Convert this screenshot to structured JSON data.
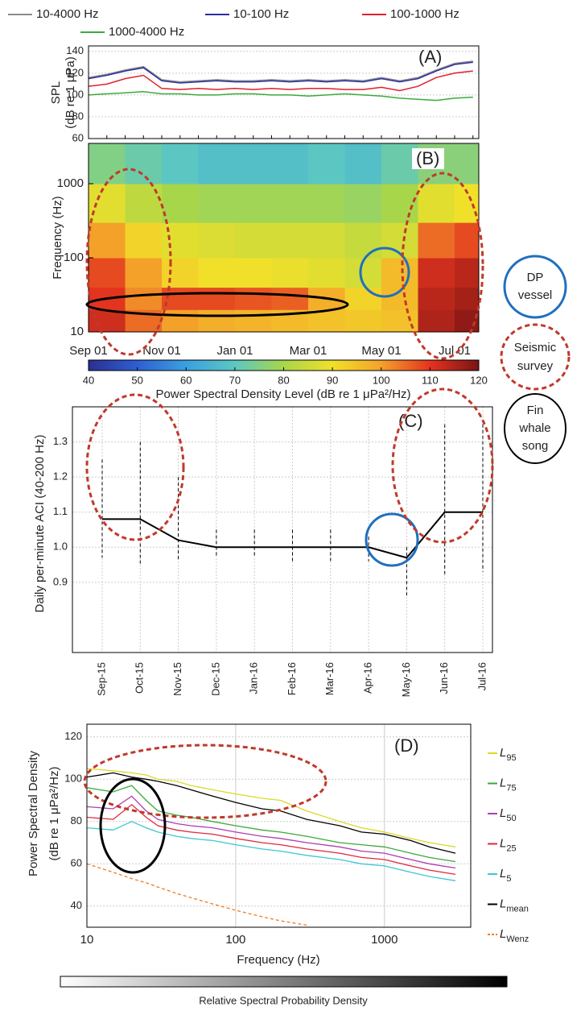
{
  "chart_data": [
    {
      "type": "line",
      "panel_label": "(A)",
      "y_label": [
        "SPL",
        "(dB re 1 μPa)"
      ],
      "categories": [
        "Sep 01",
        null,
        null,
        null,
        "Nov 01",
        null,
        null,
        null,
        "Jan 01",
        null,
        null,
        null,
        "Mar 01",
        null,
        null,
        null,
        "May 01",
        null,
        null,
        null,
        "Jul 01",
        null
      ],
      "series": [
        {
          "name": "10-4000 Hz",
          "color": "#8c8c8c",
          "values": [
            116,
            119,
            123,
            126,
            114,
            112,
            113,
            114,
            113,
            113,
            114,
            113,
            114,
            113,
            114,
            113,
            116,
            113,
            116,
            123,
            129,
            131
          ]
        },
        {
          "name": "10-100 Hz",
          "color": "#2b2f9a",
          "values": [
            115,
            118,
            122,
            125,
            113,
            111,
            112,
            113,
            112,
            112,
            113,
            112,
            113,
            112,
            113,
            112,
            115,
            112,
            115,
            122,
            128,
            130
          ]
        },
        {
          "name": "100-1000 Hz",
          "color": "#e0202a",
          "values": [
            108,
            110,
            115,
            118,
            106,
            105,
            106,
            105,
            106,
            105,
            106,
            105,
            106,
            106,
            105,
            105,
            107,
            104,
            108,
            116,
            120,
            122
          ]
        },
        {
          "name": "1000-4000 Hz",
          "color": "#3caa3c",
          "values": [
            100,
            101,
            102,
            103,
            101,
            101,
            100,
            100,
            101,
            101,
            100,
            100,
            99,
            100,
            101,
            100,
            99,
            97,
            96,
            95,
            97,
            98
          ]
        }
      ],
      "ylim": [
        60,
        145
      ],
      "yticks": [
        60,
        80,
        100,
        120,
        140
      ],
      "grid": true
    },
    {
      "type": "heatmap",
      "panel_label": "(B)",
      "y_label": "Frequency (Hz)",
      "log_y": true,
      "y_edges": [
        10,
        20,
        40,
        100,
        300,
        1000,
        3500
      ],
      "z": [
        [
          112,
          105,
          100,
          98,
          97,
          96,
          95,
          94,
          95,
          115,
          118
        ],
        [
          110,
          102,
          108,
          108,
          107,
          106,
          98,
          92,
          96,
          114,
          116
        ],
        [
          108,
          100,
          92,
          90,
          90,
          89,
          88,
          86,
          96,
          112,
          114
        ],
        [
          100,
          92,
          88,
          87,
          86,
          86,
          86,
          84,
          86,
          105,
          108
        ],
        [
          88,
          83,
          80,
          79,
          79,
          79,
          79,
          78,
          80,
          88,
          90
        ],
        [
          75,
          72,
          70,
          68,
          68,
          68,
          70,
          68,
          72,
          76,
          76
        ]
      ],
      "ylim": [
        10,
        3500
      ],
      "yticks": [
        10,
        100,
        1000
      ],
      "zlim": [
        40,
        120
      ],
      "zticks": [
        40,
        50,
        60,
        70,
        80,
        90,
        100,
        110,
        120
      ],
      "colorbar_label": "Power Spectral Density Level (dB re 1 μPa²/Hz)",
      "colormap": [
        "#2b2f91",
        "#2e5fd0",
        "#3aa0e0",
        "#5cc7c2",
        "#a8d64a",
        "#f1e02a",
        "#f4a12a",
        "#e3341f",
        "#7a1414"
      ]
    },
    {
      "type": "range",
      "panel_label": "(C)",
      "y_label": "Daily per-minute ACI (40-200 Hz)",
      "categories": [
        "Sep-15",
        "Oct-15",
        "Nov-15",
        "Dec-15",
        "Jan-16",
        "Feb-16",
        "Mar-16",
        "Apr-16",
        "May-16",
        "Jun-16",
        "Jul-16"
      ],
      "series": [
        {
          "name": "mean",
          "color": "#000000",
          "values": [
            1.08,
            1.08,
            1.02,
            1.0,
            1.0,
            1.0,
            1.0,
            1.0,
            0.97,
            1.1,
            1.1
          ]
        },
        {
          "name": "max",
          "color": "#000000",
          "values": [
            1.25,
            1.3,
            1.2,
            1.05,
            1.05,
            1.05,
            1.05,
            1.03,
            1.0,
            1.35,
            1.35
          ]
        },
        {
          "name": "min",
          "color": "#000000",
          "values": [
            0.97,
            0.95,
            0.96,
            0.97,
            0.97,
            0.96,
            0.96,
            0.96,
            0.86,
            0.92,
            0.93
          ]
        }
      ],
      "ylim": [
        0.7,
        1.4
      ],
      "yticks": [
        0.9,
        {
          "value": 1,
          "label": "1.0"
        },
        1.1,
        1.2,
        1.3
      ],
      "grid": true
    },
    {
      "type": "line",
      "panel_label": "(D)",
      "log_x": true,
      "x_label": "Frequency (Hz)",
      "y_label": [
        "Power Spectral Density",
        "(dB re 1 μPa²/Hz)"
      ],
      "x": [
        10,
        15,
        20,
        25,
        30,
        40,
        50,
        70,
        100,
        150,
        200,
        300,
        500,
        700,
        1000,
        1500,
        2000,
        3000
      ],
      "series": [
        {
          "name": "L95",
          "color": "#d9d92a",
          "values": [
            105,
            104,
            103,
            102,
            100,
            99,
            97,
            95,
            93,
            91,
            90,
            85,
            80,
            77,
            75,
            72,
            70,
            68
          ]
        },
        {
          "name": "L75",
          "color": "#3aaa3a",
          "values": [
            96,
            94,
            97,
            90,
            85,
            83,
            82,
            80,
            78,
            76,
            75,
            73,
            70,
            69,
            68,
            65,
            63,
            61
          ]
        },
        {
          "name": "L50",
          "color": "#b03cb0",
          "values": [
            87,
            86,
            92,
            85,
            81,
            79,
            78,
            77,
            75,
            73,
            72,
            70,
            68,
            66,
            65,
            62,
            60,
            58
          ]
        },
        {
          "name": "L25",
          "color": "#e0283c",
          "values": [
            82,
            81,
            88,
            82,
            78,
            76,
            75,
            74,
            72,
            70,
            69,
            67,
            65,
            63,
            62,
            59,
            57,
            55
          ]
        },
        {
          "name": "L5",
          "color": "#3cc8d0",
          "values": [
            77,
            76,
            80,
            77,
            75,
            73,
            72,
            71,
            69,
            67,
            66,
            64,
            62,
            60,
            59,
            56,
            54,
            52
          ]
        },
        {
          "name": "Lmean",
          "color": "#000000",
          "values": [
            101,
            103,
            101,
            100,
            99,
            97,
            95,
            92,
            89,
            86,
            85,
            81,
            78,
            75,
            74,
            71,
            68,
            65
          ]
        },
        {
          "name": "LWenz",
          "color": "#f07a1e",
          "dash": true,
          "values": [
            60,
            56,
            53,
            51,
            49,
            46,
            44,
            41,
            38,
            35,
            33,
            31,
            null,
            null,
            null,
            null,
            null,
            null
          ]
        }
      ],
      "xlim": [
        10,
        3800
      ],
      "xticks": [
        10,
        100,
        1000
      ],
      "ylim": [
        30,
        126
      ],
      "yticks": [
        40,
        60,
        80,
        100,
        120
      ],
      "grid": true,
      "colorbar_label": "Relative Spectral Probability Density",
      "colormap": [
        "#ffffff",
        "#000000"
      ]
    }
  ],
  "side_legend": [
    {
      "lines": [
        "DP",
        "vessel"
      ]
    },
    {
      "lines": [
        "Seismic",
        "survey"
      ]
    },
    {
      "lines": [
        "Fin",
        "whale",
        "song"
      ]
    }
  ]
}
